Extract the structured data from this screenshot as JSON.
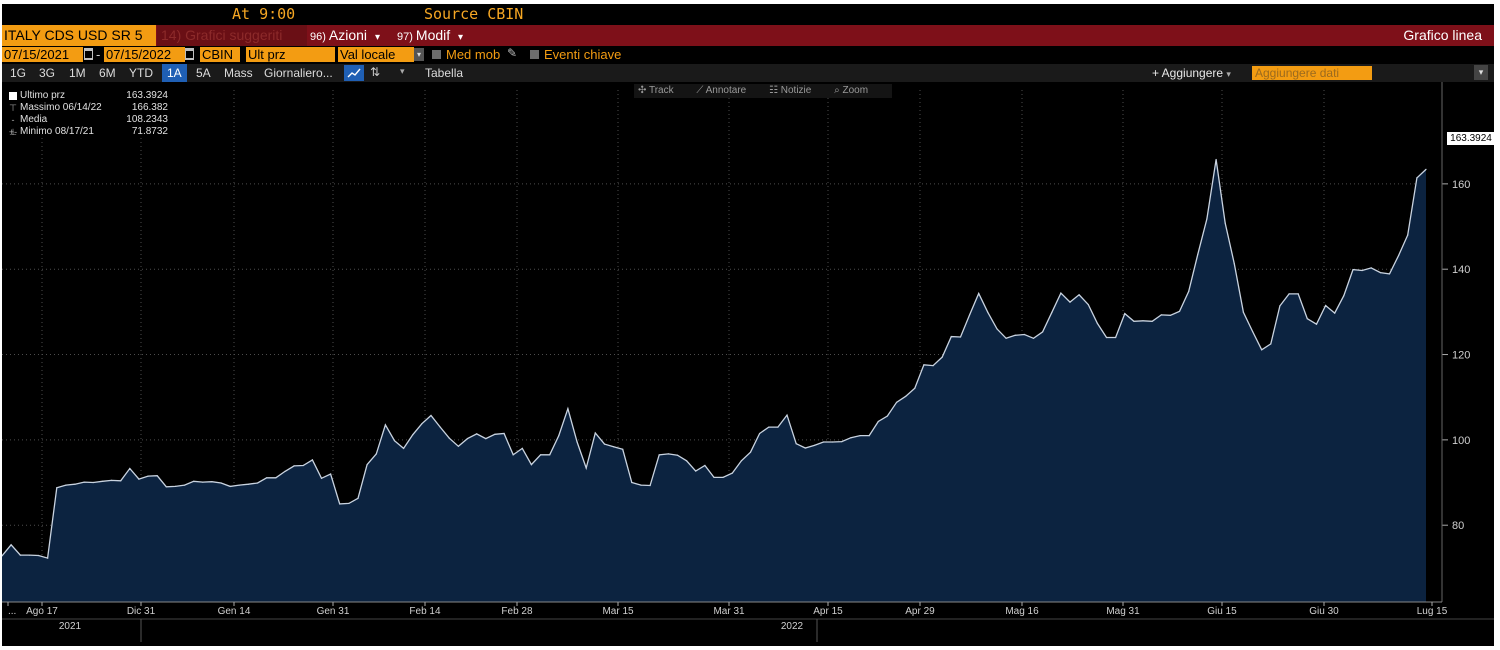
{
  "header": {
    "at_label": "At 9:00",
    "source_label": "Source CBIN"
  },
  "title_bar": {
    "security": "ITALY CDS USD SR 5",
    "suggested_num": "14)",
    "suggested_label": "Grafici suggeriti",
    "actions_num": "96)",
    "actions_label": "Azioni",
    "modify_num": "97)",
    "modify_label": "Modif",
    "chart_type": "Grafico linea",
    "dropdown_glyph": "▾"
  },
  "filters": {
    "start_date": "07/15/2021",
    "range_separator": "-",
    "end_date": "07/15/2022",
    "source": "CBIN",
    "field": "Ult prz",
    "currency": "Val locale",
    "moving_avg": "Med mob",
    "key_events": "Eventi chiave"
  },
  "toolbar": {
    "periods": [
      "1G",
      "3G",
      "1M",
      "6M",
      "YTD",
      "1A",
      "5A",
      "Mass"
    ],
    "selected_period": "1A",
    "frequency": "Giornaliero...",
    "table": "Tabella",
    "add_button": "+ Aggiungere",
    "add_data_placeholder": "Aggiungere dati"
  },
  "chart_tools": {
    "track": "Track",
    "annotate": "Annotare",
    "news": "Notizie",
    "zoom": "Zoom"
  },
  "legend": {
    "last": {
      "label": "Ultimo prz",
      "value": "163.3924"
    },
    "high": {
      "label": "Massimo 06/14/22",
      "value": "166.382"
    },
    "mean": {
      "label": "Media",
      "value": "108.2343"
    },
    "low": {
      "label": "Minimo 08/17/21",
      "value": "71.8732"
    }
  },
  "last_value_tag": "163.3924",
  "colors": {
    "accent_orange": "#f39c12",
    "title_bar_red": "#7e1019",
    "area_fill": "#0c2340",
    "line": "#c9d3e0",
    "selected_period": "#1f5fb4"
  },
  "chart_data": {
    "type": "area",
    "y_ticks": [
      80,
      100,
      120,
      140,
      160
    ],
    "ylim": [
      62,
      182
    ],
    "y_axis_side": "right",
    "grid": true,
    "x_ticks": [
      "...",
      "Ago 17",
      "Dic 31",
      "Gen 14",
      "Gen 31",
      "Feb 14",
      "Feb 28",
      "Mar 15",
      "Mar 31",
      "Apr 15",
      "Apr 29",
      "Mag 16",
      "Mag 31",
      "Giu 15",
      "Giu 30",
      "Lug 15"
    ],
    "years": [
      "2021",
      "2022"
    ],
    "values": [
      72.8,
      75.4,
      73.0,
      73.0,
      72.9,
      72.3,
      88.8,
      89.4,
      89.6,
      90.1,
      90.0,
      90.3,
      90.5,
      90.4,
      93.3,
      90.8,
      91.5,
      91.6,
      89.0,
      89.1,
      89.4,
      90.3,
      90.1,
      90.2,
      89.9,
      89.1,
      89.4,
      89.6,
      89.9,
      91.1,
      91.1,
      92.6,
      93.9,
      94.0,
      95.3,
      91.0,
      92.0,
      85.0,
      85.1,
      86.3,
      94.2,
      96.7,
      103.5,
      99.8,
      98.0,
      101.2,
      103.8,
      105.7,
      103.0,
      100.4,
      98.5,
      100.3,
      101.4,
      100.3,
      101.3,
      101.5,
      96.5,
      98.0,
      94.2,
      96.5,
      96.5,
      101.0,
      107.3,
      99.5,
      93.4,
      101.6,
      99.0,
      98.4,
      97.8,
      90.0,
      89.4,
      89.3,
      96.5,
      96.7,
      96.4,
      95.1,
      92.7,
      94.0,
      91.2,
      91.2,
      92.2,
      95.1,
      97.1,
      101.5,
      103.0,
      103.0,
      105.8,
      99.1,
      98.1,
      98.7,
      99.5,
      99.5,
      99.6,
      100.5,
      101.0,
      101.0,
      104.3,
      105.6,
      108.8,
      110.2,
      112.1,
      117.6,
      117.4,
      119.4,
      124.2,
      124.1,
      129.3,
      134.3,
      129.9,
      126.0,
      123.8,
      124.5,
      124.7,
      123.8,
      125.3,
      129.8,
      134.4,
      132.3,
      134.0,
      131.7,
      127.3,
      124.0,
      124.0,
      129.6,
      127.8,
      127.9,
      127.8,
      129.3,
      129.2,
      130.1,
      134.8,
      143.5,
      151.8,
      165.7,
      150.8,
      141.3,
      129.9,
      125.4,
      121.1,
      122.5,
      131.4,
      134.2,
      134.2,
      128.4,
      127.1,
      131.5,
      129.7,
      133.8,
      139.9,
      139.7,
      140.3,
      139.2,
      138.9,
      143.2,
      148.0,
      161.4,
      163.4
    ]
  }
}
